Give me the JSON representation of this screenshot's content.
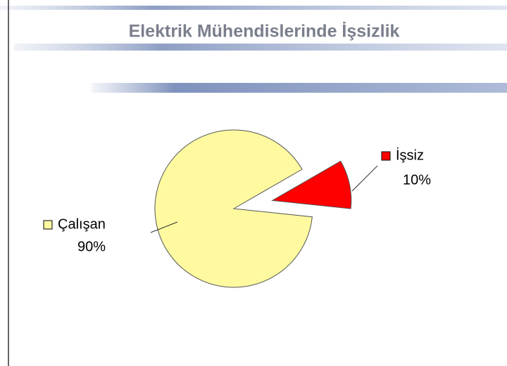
{
  "chart_data": {
    "type": "pie",
    "title": "Elektrik Mühendislerinde İşsizlik",
    "categories": [
      "Çalışan",
      "İşsiz"
    ],
    "values": [
      90,
      10
    ],
    "value_labels": [
      "90%",
      "10%"
    ],
    "colors": [
      "#fffaa0",
      "#ff0000"
    ]
  }
}
